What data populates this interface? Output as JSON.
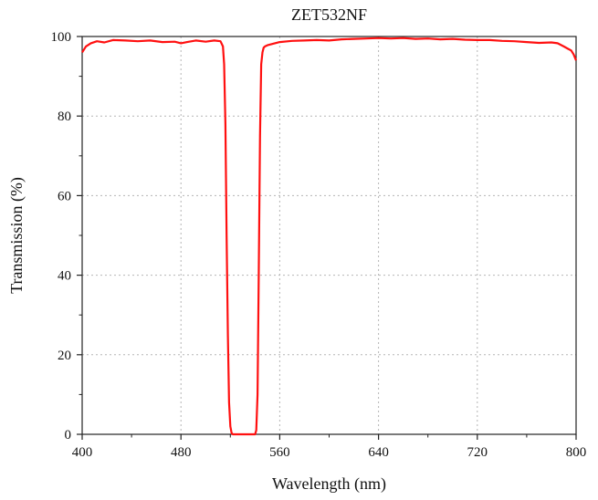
{
  "chart_data": {
    "type": "line",
    "title": "ZET532NF",
    "xlabel": "Wavelength (nm)",
    "ylabel": "Transmission (%)",
    "xlim": [
      400,
      800
    ],
    "ylim": [
      0,
      100
    ],
    "xticks": [
      400,
      480,
      560,
      640,
      720,
      800
    ],
    "yticks": [
      0,
      20,
      40,
      60,
      80,
      100
    ],
    "grid": true,
    "series": [
      {
        "color": "#ff1010",
        "x": [
          400,
          403,
          407,
          412,
          418,
          425,
          435,
          445,
          455,
          465,
          475,
          480,
          485,
          492,
          500,
          507,
          512,
          514,
          515,
          516,
          517,
          518,
          519,
          520,
          521,
          522,
          523,
          524,
          525,
          530,
          535,
          540,
          541,
          542,
          543,
          544,
          545,
          546,
          547,
          548,
          550,
          555,
          560,
          570,
          580,
          590,
          600,
          610,
          620,
          630,
          640,
          650,
          660,
          670,
          680,
          690,
          700,
          710,
          720,
          730,
          740,
          750,
          760,
          770,
          780,
          785,
          790,
          793,
          796,
          798,
          800
        ],
        "y": [
          96.0,
          97.5,
          98.3,
          98.8,
          98.5,
          99.1,
          99.0,
          98.8,
          99.0,
          98.6,
          98.7,
          98.3,
          98.6,
          99.0,
          98.7,
          99.0,
          98.8,
          97.5,
          93.0,
          78.0,
          50.0,
          25.0,
          8.0,
          2.0,
          0.3,
          0.0,
          0.0,
          0.0,
          0.0,
          0.0,
          0.0,
          0.0,
          1.0,
          10.0,
          40.0,
          75.0,
          93.0,
          96.0,
          97.2,
          97.5,
          97.8,
          98.2,
          98.6,
          98.9,
          99.0,
          99.1,
          99.0,
          99.3,
          99.4,
          99.5,
          99.6,
          99.5,
          99.6,
          99.4,
          99.5,
          99.3,
          99.4,
          99.2,
          99.1,
          99.1,
          98.9,
          98.8,
          98.6,
          98.4,
          98.5,
          98.3,
          97.5,
          97.0,
          96.5,
          95.5,
          94.0
        ]
      }
    ]
  }
}
